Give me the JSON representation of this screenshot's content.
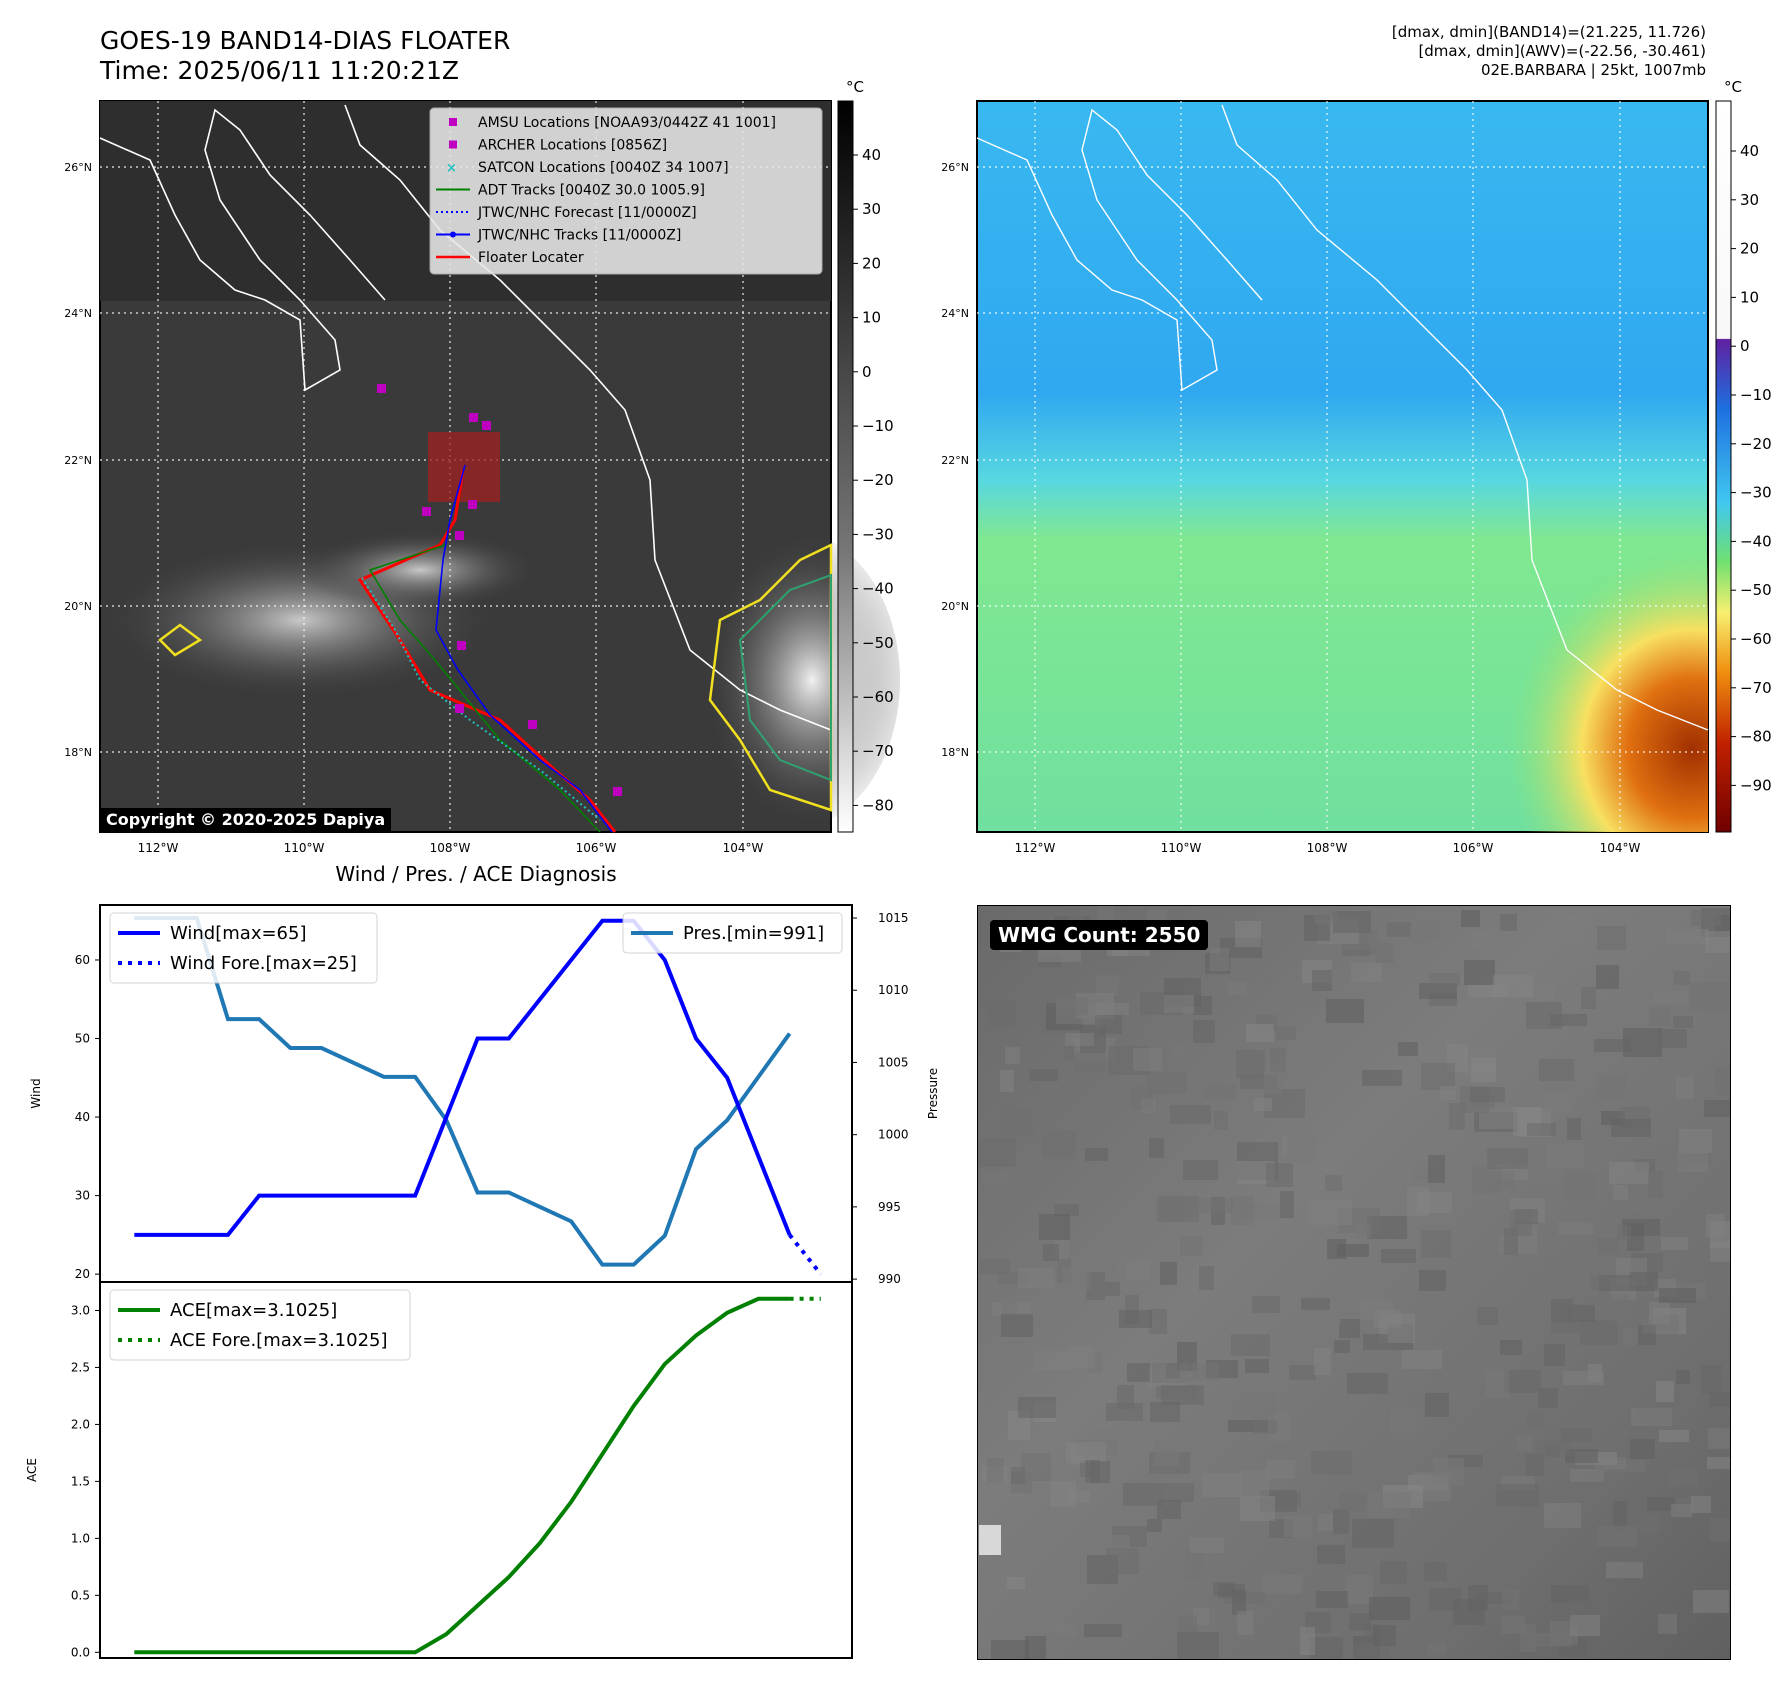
{
  "header": {
    "title_line1": "GOES-19 BAND14-DIAS FLOATER",
    "title_line2": "Time: 2025/06/11 11:20:21Z",
    "stats_line1": "[dmax, dmin](BAND14)=(21.225, 11.726)",
    "stats_line2": "[dmax, dmin](AWV)=(-22.56, -30.461)",
    "stats_line3": "02E.BARBARA | 25kt, 1007mb"
  },
  "map": {
    "lat_ticks": [
      "26°N",
      "24°N",
      "22°N",
      "20°N",
      "18°N"
    ],
    "lon_ticks": [
      "112°W",
      "110°W",
      "108°W",
      "106°W",
      "104°W"
    ],
    "copyright": "Copyright © 2020-2025 Dapiya",
    "unit": "°C",
    "colorbar_left_ticks": [
      "40",
      "30",
      "20",
      "10",
      "0",
      "−10",
      "−20",
      "−30",
      "−40",
      "−50",
      "−60",
      "−70",
      "−80"
    ],
    "colorbar_right_ticks": [
      "40",
      "30",
      "20",
      "10",
      "0",
      "−10",
      "−20",
      "−30",
      "−40",
      "−50",
      "−60",
      "−70",
      "−80",
      "−90"
    ],
    "legend": [
      {
        "label": "AMSU Locations [NOAA93/0442Z 41 1001]",
        "color": "#c000c0"
      },
      {
        "label": "ARCHER Locations [0856Z]",
        "color": "#c000c0"
      },
      {
        "label": "SATCON Locations [0040Z 34 1007]",
        "color": "#20c0c0"
      },
      {
        "label": "ADT Tracks [0040Z 30.0 1005.9]",
        "color": "#008000"
      },
      {
        "label": "JTWC/NHC Forecast [11/0000Z]",
        "color": "#0000ff"
      },
      {
        "label": "JTWC/NHC Tracks [11/0000Z]",
        "color": "#0000ff"
      },
      {
        "label": "Floater Locater",
        "color": "#ff0000"
      }
    ]
  },
  "diagnosis": {
    "title": "Wind / Pres. / ACE Diagnosis",
    "wind_ylabel": "Wind",
    "pres_ylabel": "Pressure",
    "ace_ylabel": "ACE",
    "legend_wind": "Wind[max=65]",
    "legend_wind_fore": "Wind Fore.[max=25]",
    "legend_pres": "Pres.[min=991]",
    "legend_ace": "ACE[max=3.1025]",
    "legend_ace_fore": "ACE Fore.[max=3.1025]"
  },
  "wmg": {
    "label": "WMG Count: 2550"
  },
  "colors": {
    "wind": "#0000ff",
    "pressure": "#1f77b4",
    "ace": "#008000"
  },
  "chart_data": [
    {
      "type": "line",
      "title": "Wind / Pres. / ACE Diagnosis",
      "ylabel": "Wind",
      "ylim": [
        19,
        67
      ],
      "yticks": [
        20,
        30,
        40,
        50,
        60
      ],
      "x": [
        0,
        1,
        2,
        3,
        4,
        5,
        6,
        7,
        8,
        9,
        10,
        11,
        12,
        13,
        14,
        15,
        16,
        17,
        18,
        19,
        20,
        21,
        22
      ],
      "series": [
        {
          "name": "Wind[max=65]",
          "axis": "left",
          "style": "solid",
          "x": [
            0,
            1,
            2,
            3,
            4,
            5,
            6,
            7,
            8,
            9,
            10,
            11,
            12,
            13,
            14,
            15,
            16,
            17,
            18,
            19,
            20,
            21
          ],
          "values": [
            25,
            25,
            25,
            25,
            30,
            30,
            30,
            30,
            30,
            30,
            40,
            50,
            50,
            55,
            60,
            65,
            65,
            60,
            50,
            45,
            35,
            25
          ]
        },
        {
          "name": "Wind Fore.[max=25]",
          "axis": "left",
          "style": "dotted",
          "x": [
            21,
            22
          ],
          "values": [
            25,
            20
          ]
        },
        {
          "name": "Pres.[min=991]",
          "axis": "right",
          "style": "solid",
          "x": [
            0,
            1,
            2,
            3,
            4,
            5,
            6,
            7,
            8,
            9,
            10,
            11,
            12,
            13,
            14,
            15,
            16,
            17,
            18,
            19,
            20,
            21
          ],
          "values": [
            1015,
            1015,
            1015,
            1008,
            1008,
            1006,
            1006,
            1005,
            1004,
            1004,
            1001,
            996,
            996,
            995,
            994,
            991,
            991,
            993,
            999,
            1001,
            1004,
            1007
          ]
        }
      ],
      "right_axis": {
        "label": "Pressure",
        "ylim": [
          989.8,
          1015.9
        ],
        "yticks": [
          990,
          995,
          1000,
          1005,
          1010,
          1015
        ]
      }
    },
    {
      "type": "line",
      "ylabel": "ACE",
      "ylim": [
        -0.05,
        3.25
      ],
      "yticks": [
        0.0,
        0.5,
        1.0,
        1.5,
        2.0,
        2.5,
        3.0
      ],
      "series": [
        {
          "name": "ACE[max=3.1025]",
          "style": "solid",
          "x": [
            0,
            1,
            2,
            3,
            4,
            5,
            6,
            7,
            8,
            9,
            10,
            11,
            12,
            13,
            14,
            15,
            16,
            17,
            18,
            19,
            20,
            21
          ],
          "values": [
            0,
            0,
            0,
            0,
            0,
            0,
            0,
            0,
            0,
            0,
            0.16,
            0.41,
            0.66,
            0.96,
            1.32,
            1.74,
            2.16,
            2.53,
            2.78,
            2.98,
            3.1025,
            3.1025
          ]
        },
        {
          "name": "ACE Fore.[max=3.1025]",
          "style": "dotted",
          "x": [
            21,
            22
          ],
          "values": [
            3.1025,
            3.1025
          ]
        }
      ]
    }
  ]
}
